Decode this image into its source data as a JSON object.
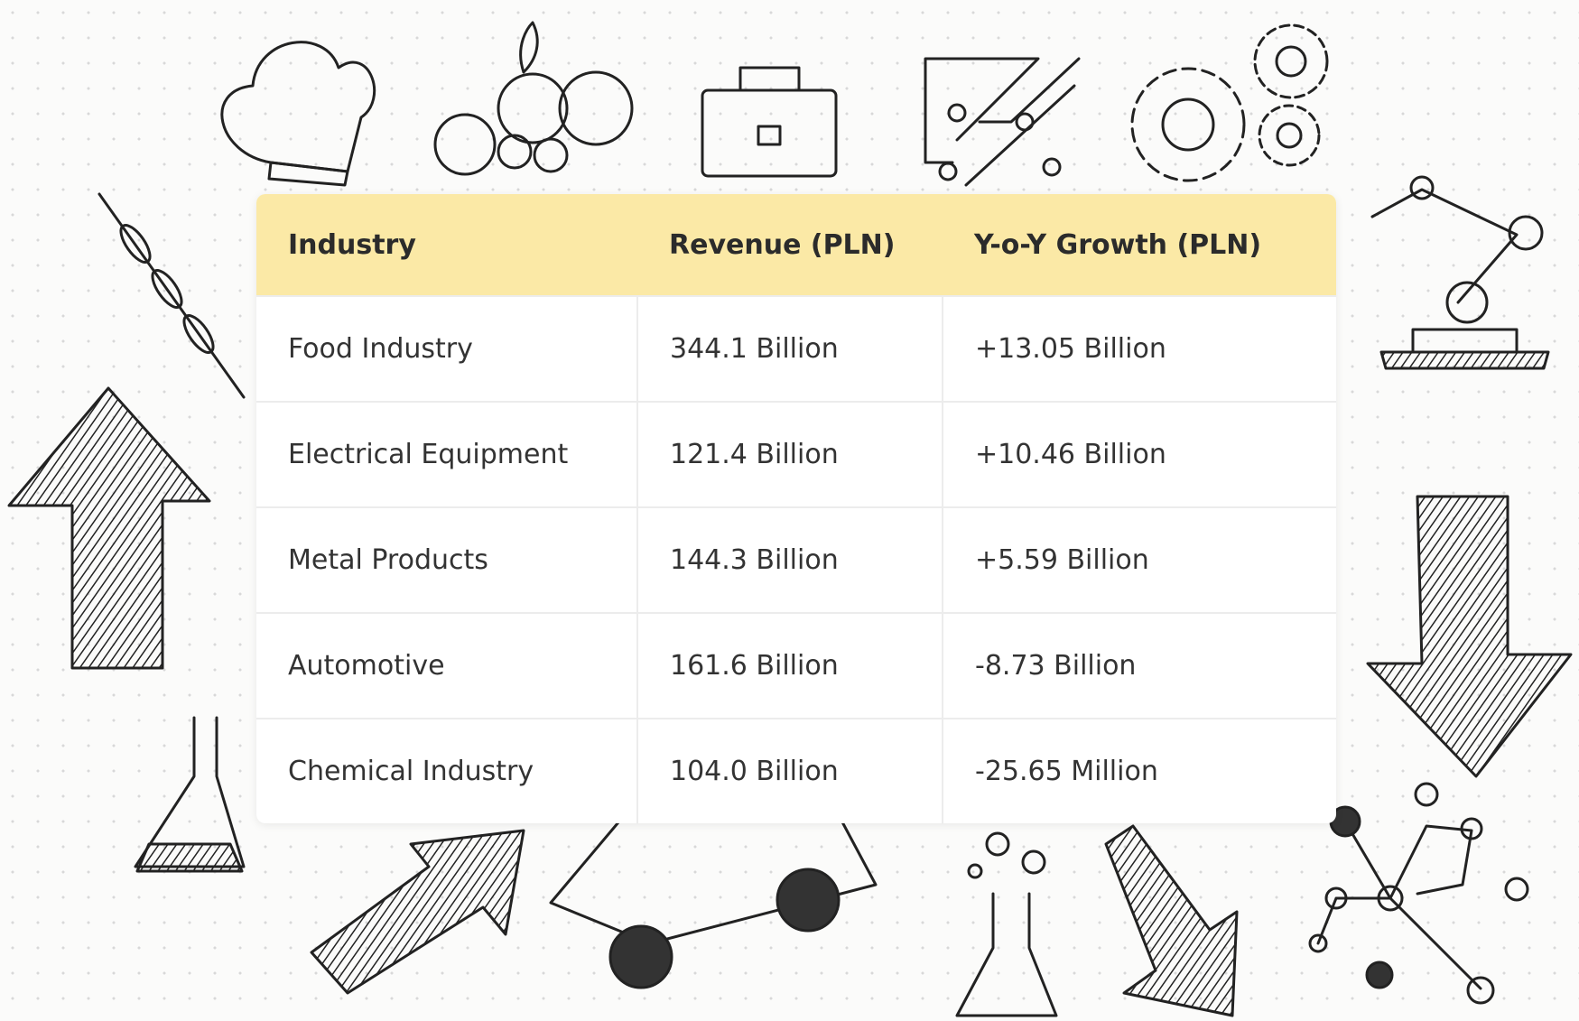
{
  "table": {
    "header": [
      "Industry",
      "Revenue (PLN)",
      "Y-o-Y Growth (PLN)"
    ],
    "rows": [
      [
        "Food Industry",
        "344.1 Billion",
        "+13.05 Billion"
      ],
      [
        "Electrical Equipment",
        "121.4 Billion",
        "+10.46 Billion"
      ],
      [
        "Metal Products",
        "144.3 Billion",
        "+5.59 Billion"
      ],
      [
        "Automotive",
        "161.6 Billion",
        "-8.73 Billion"
      ],
      [
        "Chemical Industry",
        "104.0 Billion",
        "-25.65 Million"
      ]
    ]
  }
}
